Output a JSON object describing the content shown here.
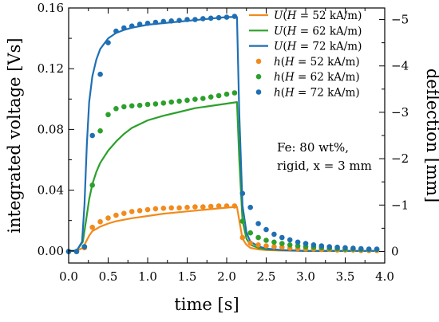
{
  "chart_data": {
    "type": "line",
    "xlabel": "time [s]",
    "ylabel": "integrated voltage [Vs]",
    "y2label": "deflection [mm]",
    "xlim": [
      0,
      4
    ],
    "ylim": [
      -0.008,
      0.16
    ],
    "y2lim": [
      0.25,
      -5.25
    ],
    "x_ticks": [
      "0.0",
      "0.5",
      "1.0",
      "1.5",
      "2.0",
      "2.5",
      "3.0",
      "3.5",
      "4.0"
    ],
    "y_ticks": [
      "0.00",
      "0.04",
      "0.08",
      "0.12",
      "0.16"
    ],
    "y2_ticks": [
      "0",
      "−1",
      "−2",
      "−3",
      "−4",
      "−5"
    ],
    "annotation": [
      "Fe: 80 wt%,",
      "rigid, x = 3 mm"
    ],
    "legend": [
      {
        "label": "U(H = 52 kA/m)",
        "color": "#f28a1c",
        "kind": "line"
      },
      {
        "label": "U(H = 62 kA/m)",
        "color": "#2ca02c",
        "kind": "line"
      },
      {
        "label": "U(H = 72 kA/m)",
        "color": "#1f6fb4",
        "kind": "line"
      },
      {
        "label": "h(H = 52 kA/m)",
        "color": "#f28a1c",
        "kind": "marker"
      },
      {
        "label": "h(H = 62 kA/m)",
        "color": "#2ca02c",
        "kind": "marker"
      },
      {
        "label": "h(H = 72 kA/m)",
        "color": "#1f6fb4",
        "kind": "marker"
      }
    ],
    "series": [
      {
        "name": "U(H = 52 kA/m)",
        "axis": "left",
        "kind": "line",
        "color": "#f28a1c",
        "x": [
          0,
          0.1,
          0.18,
          0.22,
          0.26,
          0.3,
          0.4,
          0.5,
          0.6,
          0.8,
          1.0,
          1.2,
          1.4,
          1.6,
          1.8,
          2.0,
          2.13,
          2.16,
          2.2,
          2.25,
          2.3,
          2.4,
          2.5,
          2.7,
          3.0,
          3.3,
          3.6,
          3.9
        ],
        "y": [
          0,
          0,
          0.002,
          0.006,
          0.01,
          0.013,
          0.016,
          0.018,
          0.0195,
          0.0215,
          0.023,
          0.0245,
          0.0255,
          0.0265,
          0.0275,
          0.0285,
          0.029,
          0.02,
          0.008,
          0.004,
          0.002,
          0.001,
          0.0005,
          0.0002,
          0,
          0,
          0,
          0
        ]
      },
      {
        "name": "U(H = 62 kA/m)",
        "axis": "left",
        "kind": "line",
        "color": "#2ca02c",
        "x": [
          0,
          0.1,
          0.18,
          0.22,
          0.26,
          0.3,
          0.35,
          0.4,
          0.5,
          0.6,
          0.7,
          0.8,
          1.0,
          1.2,
          1.4,
          1.6,
          1.8,
          2.0,
          2.13,
          2.16,
          2.2,
          2.25,
          2.3,
          2.4,
          2.5,
          2.7,
          3.0,
          3.3,
          3.6,
          3.9
        ],
        "y": [
          0,
          0,
          0.006,
          0.02,
          0.034,
          0.044,
          0.052,
          0.058,
          0.066,
          0.072,
          0.077,
          0.081,
          0.086,
          0.089,
          0.0915,
          0.094,
          0.0955,
          0.097,
          0.098,
          0.06,
          0.02,
          0.008,
          0.004,
          0.002,
          0.001,
          0.0005,
          0,
          0,
          0,
          0
        ]
      },
      {
        "name": "U(H = 72 kA/m)",
        "axis": "left",
        "kind": "line",
        "color": "#1f6fb4",
        "x": [
          0,
          0.1,
          0.17,
          0.2,
          0.23,
          0.26,
          0.3,
          0.35,
          0.4,
          0.5,
          0.6,
          0.7,
          0.8,
          1.0,
          1.2,
          1.4,
          1.6,
          1.8,
          2.0,
          2.13,
          2.16,
          2.2,
          2.25,
          2.3,
          2.4,
          2.5,
          2.7,
          3.0,
          3.3,
          3.6,
          3.9
        ],
        "y": [
          0,
          0,
          0.006,
          0.03,
          0.07,
          0.098,
          0.115,
          0.126,
          0.133,
          0.14,
          0.1435,
          0.1455,
          0.147,
          0.149,
          0.15,
          0.151,
          0.152,
          0.153,
          0.154,
          0.154,
          0.09,
          0.03,
          0.012,
          0.006,
          0.003,
          0.0015,
          0.0005,
          0,
          0,
          0,
          0
        ]
      },
      {
        "name": "h(H = 52 kA/m)",
        "axis": "right",
        "kind": "marker",
        "color": "#f28a1c",
        "x": [
          0.0,
          0.1,
          0.2,
          0.3,
          0.4,
          0.5,
          0.6,
          0.7,
          0.8,
          0.9,
          1.0,
          1.1,
          1.2,
          1.3,
          1.4,
          1.5,
          1.6,
          1.7,
          1.8,
          1.9,
          2.0,
          2.1,
          2.2,
          2.3,
          2.4,
          2.5,
          2.6,
          2.7,
          2.8,
          2.9,
          3.0,
          3.1,
          3.2,
          3.3,
          3.4,
          3.5,
          3.6,
          3.7,
          3.8,
          3.9
        ],
        "y": [
          0.0,
          0.0,
          -0.08,
          -0.52,
          -0.64,
          -0.72,
          -0.78,
          -0.82,
          -0.86,
          -0.88,
          -0.9,
          -0.92,
          -0.93,
          -0.94,
          -0.94,
          -0.95,
          -0.96,
          -0.96,
          -0.97,
          -0.98,
          -0.98,
          -0.98,
          -0.3,
          -0.18,
          -0.14,
          -0.12,
          -0.1,
          -0.09,
          -0.07,
          -0.06,
          -0.05,
          -0.05,
          -0.04,
          -0.04,
          -0.03,
          -0.03,
          -0.03,
          -0.02,
          -0.02,
          -0.02
        ]
      },
      {
        "name": "h(H = 62 kA/m)",
        "axis": "right",
        "kind": "marker",
        "color": "#2ca02c",
        "x": [
          0.0,
          0.1,
          0.2,
          0.3,
          0.4,
          0.5,
          0.6,
          0.7,
          0.8,
          0.9,
          1.0,
          1.1,
          1.2,
          1.3,
          1.4,
          1.5,
          1.6,
          1.7,
          1.8,
          1.9,
          2.0,
          2.1,
          2.2,
          2.3,
          2.4,
          2.5,
          2.6,
          2.7,
          2.8,
          2.9,
          3.0,
          3.1,
          3.2,
          3.3,
          3.4,
          3.5,
          3.6,
          3.7,
          3.8,
          3.9
        ],
        "y": [
          0.0,
          0.0,
          -0.1,
          -1.43,
          -2.6,
          -2.95,
          -3.08,
          -3.12,
          -3.14,
          -3.15,
          -3.17,
          -3.18,
          -3.2,
          -3.22,
          -3.24,
          -3.26,
          -3.28,
          -3.3,
          -3.33,
          -3.36,
          -3.39,
          -3.42,
          -0.65,
          -0.4,
          -0.3,
          -0.24,
          -0.2,
          -0.17,
          -0.14,
          -0.12,
          -0.1,
          -0.09,
          -0.08,
          -0.07,
          -0.06,
          -0.05,
          -0.05,
          -0.04,
          -0.04,
          -0.04
        ]
      },
      {
        "name": "h(H = 72 kA/m)",
        "axis": "right",
        "kind": "marker",
        "color": "#1f6fb4",
        "x": [
          0.0,
          0.1,
          0.2,
          0.3,
          0.4,
          0.5,
          0.6,
          0.7,
          0.8,
          0.9,
          1.0,
          1.1,
          1.2,
          1.3,
          1.4,
          1.5,
          1.6,
          1.7,
          1.8,
          1.9,
          2.0,
          2.1,
          2.2,
          2.3,
          2.4,
          2.5,
          2.6,
          2.7,
          2.8,
          2.9,
          3.0,
          3.1,
          3.2,
          3.3,
          3.4,
          3.5,
          3.6,
          3.7,
          3.8,
          3.9
        ],
        "y": [
          0.0,
          0.0,
          -0.1,
          -2.5,
          -3.82,
          -4.5,
          -4.75,
          -4.82,
          -4.86,
          -4.9,
          -4.92,
          -4.94,
          -4.96,
          -4.97,
          -4.98,
          -5.0,
          -5.0,
          -5.02,
          -5.03,
          -5.04,
          -5.05,
          -5.07,
          -1.25,
          -0.95,
          -0.6,
          -0.47,
          -0.37,
          -0.3,
          -0.25,
          -0.2,
          -0.17,
          -0.14,
          -0.12,
          -0.1,
          -0.09,
          -0.08,
          -0.07,
          -0.06,
          -0.05,
          -0.05
        ]
      }
    ]
  }
}
